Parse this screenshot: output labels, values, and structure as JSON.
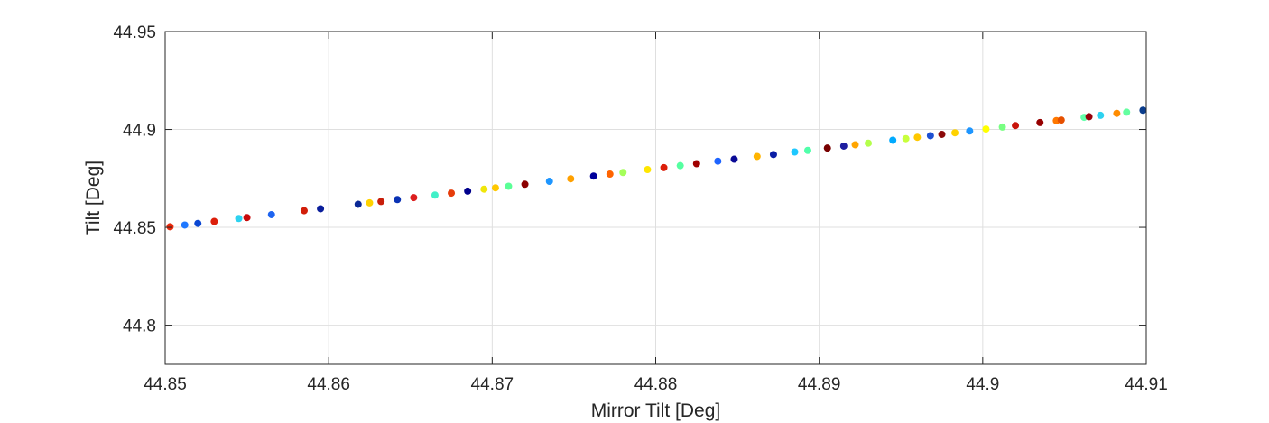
{
  "chart_data": {
    "type": "scatter",
    "title": "",
    "xlabel": "Mirror Tilt [Deg]",
    "ylabel": "Tilt [Deg]",
    "xlim": [
      44.85,
      44.91
    ],
    "ylim": [
      44.78,
      44.95
    ],
    "x_ticks": [
      "44.85",
      "44.86",
      "44.87",
      "44.88",
      "44.89",
      "44.9",
      "44.91"
    ],
    "x_tick_values": [
      44.85,
      44.86,
      44.87,
      44.88,
      44.89,
      44.9,
      44.91
    ],
    "y_ticks": [
      "44.8",
      "44.85",
      "44.9",
      "44.95"
    ],
    "y_tick_values": [
      44.8,
      44.85,
      44.9,
      44.95
    ],
    "grid": true,
    "box": true,
    "colormap": "jet",
    "x": [
      44.8503,
      44.8512,
      44.852,
      44.853,
      44.8545,
      44.855,
      44.8565,
      44.8585,
      44.8595,
      44.8618,
      44.8625,
      44.8632,
      44.8642,
      44.8652,
      44.8665,
      44.8675,
      44.8685,
      44.8695,
      44.8702,
      44.871,
      44.872,
      44.8735,
      44.8748,
      44.8762,
      44.8772,
      44.878,
      44.8795,
      44.8805,
      44.8815,
      44.8825,
      44.8838,
      44.8848,
      44.8862,
      44.8872,
      44.8885,
      44.8893,
      44.8905,
      44.8915,
      44.8922,
      44.893,
      44.8945,
      44.8953,
      44.896,
      44.8968,
      44.8975,
      44.8983,
      44.8992,
      44.9002,
      44.9012,
      44.902,
      44.9035,
      44.9045,
      44.9048,
      44.9062,
      44.9065,
      44.9072,
      44.9082,
      44.9088,
      44.9098
    ],
    "y": [
      44.8503,
      44.8512,
      44.852,
      44.853,
      44.8545,
      44.855,
      44.8565,
      44.8585,
      44.8595,
      44.8618,
      44.8625,
      44.8632,
      44.8642,
      44.8652,
      44.8665,
      44.8675,
      44.8685,
      44.8695,
      44.8702,
      44.871,
      44.872,
      44.8735,
      44.8748,
      44.8762,
      44.8772,
      44.878,
      44.8795,
      44.8805,
      44.8815,
      44.8825,
      44.8838,
      44.8848,
      44.8862,
      44.8872,
      44.8885,
      44.8893,
      44.8905,
      44.8915,
      44.8922,
      44.893,
      44.8945,
      44.8953,
      44.896,
      44.8968,
      44.8975,
      44.8983,
      44.8992,
      44.9002,
      44.9012,
      44.902,
      44.9035,
      44.9045,
      44.9048,
      44.9062,
      44.9065,
      44.9072,
      44.9082,
      44.9088,
      44.9098
    ],
    "colors": [
      "#e8280a",
      "#1e78ff",
      "#0a46d2",
      "#dc1e0a",
      "#2dd2f0",
      "#c80a0a",
      "#1e64f0",
      "#d21e0a",
      "#0a1e9b",
      "#0a2896",
      "#ffd200",
      "#c81e0a",
      "#0a32b4",
      "#dc1e1e",
      "#41f0c8",
      "#e63c0a",
      "#00008c",
      "#f0e60a",
      "#ffc800",
      "#5aff96",
      "#8c0000",
      "#1e96ff",
      "#ffa000",
      "#00009b",
      "#ff6400",
      "#a5ff5a",
      "#ffe600",
      "#dc1e0a",
      "#55ffa0",
      "#a00000",
      "#1e64ff",
      "#0a0a96",
      "#ffb400",
      "#0a1ea5",
      "#1ec8ff",
      "#50ffaa",
      "#780000",
      "#1e1ea0",
      "#ffa500",
      "#b4ff4b",
      "#00aaff",
      "#c8ff3c",
      "#ffc800",
      "#1e50d2",
      "#8c0a0a",
      "#ffd200",
      "#1e96ff",
      "#ffff00",
      "#78ff82",
      "#c8140a",
      "#960000",
      "#ff7800",
      "#e65000",
      "#64ffaa",
      "#96000a",
      "#2dd2f0",
      "#ff8c00",
      "#64ffa0",
      "#0a3c8c"
    ]
  }
}
